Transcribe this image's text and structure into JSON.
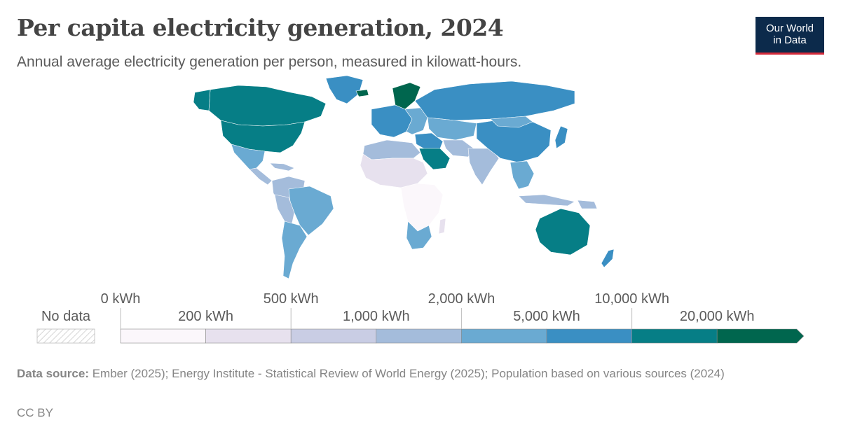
{
  "header": {
    "title": "Per capita electricity generation, 2024",
    "subtitle": "Annual average electricity generation per person, measured in kilowatt-hours."
  },
  "logo": {
    "line1": "Our World",
    "line2": "in Data"
  },
  "legend": {
    "no_data_label": "No data",
    "upper_ticks": [
      "0 kWh",
      "500 kWh",
      "2,000 kWh",
      "10,000 kWh"
    ],
    "lower_ticks": [
      "200 kWh",
      "1,000 kWh",
      "5,000 kWh",
      "20,000 kWh"
    ],
    "bins": [
      {
        "from": 0,
        "to": 200,
        "color": "#fbf7fb"
      },
      {
        "from": 200,
        "to": 500,
        "color": "#e7e1ee"
      },
      {
        "from": 500,
        "to": 1000,
        "color": "#c9cde4"
      },
      {
        "from": 1000,
        "to": 2000,
        "color": "#a4bcdb"
      },
      {
        "from": 2000,
        "to": 5000,
        "color": "#6aaad2"
      },
      {
        "from": 5000,
        "to": 10000,
        "color": "#3a8fc3"
      },
      {
        "from": 10000,
        "to": 20000,
        "color": "#067e86"
      },
      {
        "from": 20000,
        "to": null,
        "color": "#00664e"
      }
    ]
  },
  "footer": {
    "source_label": "Data source:",
    "source_text": " Ember (2025); Energy Institute - Statistical Review of World Energy (2025); Population based on various sources (2024)",
    "license": "CC BY"
  }
}
